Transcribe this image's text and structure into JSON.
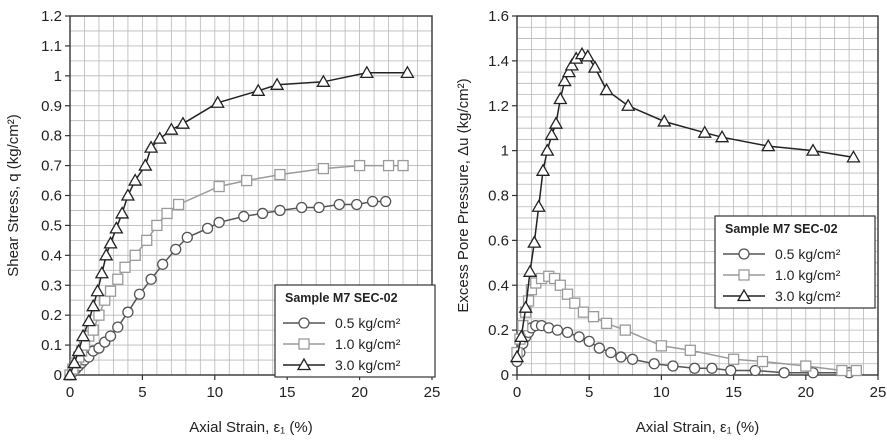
{
  "chart_data": [
    {
      "type": "line",
      "xlabel": "Axial Strain, ε₁ (%)",
      "ylabel": "Shear Stress, q (kg/cm²)",
      "xlim": [
        0,
        25
      ],
      "ylim": [
        0,
        1.2
      ],
      "xticks": [
        0,
        5,
        10,
        15,
        20,
        25
      ],
      "xtick_labels": [
        "0",
        "5",
        "10",
        "15",
        "20",
        "25"
      ],
      "yticks": [
        0,
        0.1,
        0.2,
        0.3,
        0.4,
        0.5,
        0.6,
        0.7,
        0.8,
        0.9,
        1,
        1.1,
        1.2
      ],
      "ytick_labels": [
        "0",
        "0.1",
        "0.2",
        "0.3",
        "0.4",
        "0.5",
        "0.6",
        "0.7",
        "0.8",
        "0.9",
        "1",
        "1.1",
        "1.2"
      ],
      "grid": true,
      "legend": {
        "title": "Sample M7 SEC-02",
        "placement": "bottom-right"
      },
      "series": [
        {
          "name": "0.5 kg/cm²",
          "marker": "circle",
          "color": "#555555",
          "points": [
            [
              0,
              0
            ],
            [
              0.2,
              0.01
            ],
            [
              0.4,
              0.02
            ],
            [
              0.6,
              0.03
            ],
            [
              0.8,
              0.04
            ],
            [
              1.0,
              0.05
            ],
            [
              1.3,
              0.06
            ],
            [
              1.6,
              0.08
            ],
            [
              2.0,
              0.09
            ],
            [
              2.4,
              0.11
            ],
            [
              2.8,
              0.13
            ],
            [
              3.3,
              0.16
            ],
            [
              4.0,
              0.21
            ],
            [
              4.8,
              0.27
            ],
            [
              5.6,
              0.32
            ],
            [
              6.4,
              0.37
            ],
            [
              7.3,
              0.42
            ],
            [
              8.1,
              0.46
            ],
            [
              9.5,
              0.49
            ],
            [
              10.3,
              0.51
            ],
            [
              12.0,
              0.53
            ],
            [
              13.3,
              0.54
            ],
            [
              14.5,
              0.55
            ],
            [
              16.0,
              0.56
            ],
            [
              17.2,
              0.56
            ],
            [
              18.6,
              0.57
            ],
            [
              19.8,
              0.57
            ],
            [
              20.9,
              0.58
            ],
            [
              21.8,
              0.58
            ]
          ]
        },
        {
          "name": "1.0 kg/cm²",
          "marker": "square",
          "color": "#9a9a9a",
          "points": [
            [
              0,
              0
            ],
            [
              0.2,
              0.02
            ],
            [
              0.4,
              0.04
            ],
            [
              0.6,
              0.06
            ],
            [
              0.8,
              0.08
            ],
            [
              1.0,
              0.1
            ],
            [
              1.3,
              0.13
            ],
            [
              1.6,
              0.15
            ],
            [
              2.0,
              0.2
            ],
            [
              2.4,
              0.25
            ],
            [
              2.8,
              0.28
            ],
            [
              3.3,
              0.32
            ],
            [
              3.8,
              0.36
            ],
            [
              4.5,
              0.4
            ],
            [
              5.3,
              0.45
            ],
            [
              6.0,
              0.5
            ],
            [
              6.7,
              0.54
            ],
            [
              7.5,
              0.57
            ],
            [
              10.3,
              0.63
            ],
            [
              12.2,
              0.65
            ],
            [
              14.5,
              0.67
            ],
            [
              17.5,
              0.69
            ],
            [
              20.0,
              0.7
            ],
            [
              22.0,
              0.7
            ],
            [
              23.0,
              0.7
            ]
          ]
        },
        {
          "name": "3.0 kg/cm²",
          "marker": "triangle",
          "color": "#222222",
          "points": [
            [
              0,
              0
            ],
            [
              0.3,
              0.04
            ],
            [
              0.6,
              0.08
            ],
            [
              0.9,
              0.13
            ],
            [
              1.3,
              0.18
            ],
            [
              1.6,
              0.23
            ],
            [
              1.9,
              0.28
            ],
            [
              2.2,
              0.34
            ],
            [
              2.5,
              0.4
            ],
            [
              2.8,
              0.44
            ],
            [
              3.2,
              0.49
            ],
            [
              3.6,
              0.54
            ],
            [
              4.0,
              0.6
            ],
            [
              4.5,
              0.65
            ],
            [
              5.2,
              0.7
            ],
            [
              5.6,
              0.76
            ],
            [
              6.2,
              0.79
            ],
            [
              7.0,
              0.82
            ],
            [
              7.8,
              0.84
            ],
            [
              10.2,
              0.91
            ],
            [
              13.0,
              0.95
            ],
            [
              14.3,
              0.97
            ],
            [
              17.5,
              0.98
            ],
            [
              20.5,
              1.01
            ],
            [
              23.3,
              1.01
            ]
          ]
        }
      ]
    },
    {
      "type": "line",
      "xlabel": "Axial Strain, ε₁ (%)",
      "ylabel": "Excess Pore Pressure, Δu (kg/cm²)",
      "xlim": [
        0,
        25
      ],
      "ylim": [
        0,
        1.6
      ],
      "xticks": [
        0,
        5,
        10,
        15,
        20,
        25
      ],
      "xtick_labels": [
        "0",
        "5",
        "10",
        "15",
        "20",
        "25"
      ],
      "yticks": [
        0,
        0.2,
        0.4,
        0.6,
        0.8,
        1,
        1.2,
        1.4,
        1.6
      ],
      "ytick_labels": [
        "0",
        "0.2",
        "0.4",
        "0.6",
        "0.8",
        "1",
        "1.2",
        "1.4",
        "1.6"
      ],
      "grid": true,
      "legend": {
        "title": "Sample M7 SEC-02",
        "placement": "center-right"
      },
      "series": [
        {
          "name": "0.5 kg/cm²",
          "marker": "circle",
          "color": "#555555",
          "points": [
            [
              0,
              0.06
            ],
            [
              0.2,
              0.1
            ],
            [
              0.4,
              0.14
            ],
            [
              0.6,
              0.17
            ],
            [
              0.8,
              0.19
            ],
            [
              1.0,
              0.21
            ],
            [
              1.3,
              0.22
            ],
            [
              1.7,
              0.22
            ],
            [
              2.2,
              0.21
            ],
            [
              2.8,
              0.2
            ],
            [
              3.5,
              0.19
            ],
            [
              4.3,
              0.17
            ],
            [
              5.0,
              0.15
            ],
            [
              5.7,
              0.12
            ],
            [
              6.5,
              0.1
            ],
            [
              7.2,
              0.08
            ],
            [
              8.0,
              0.07
            ],
            [
              9.5,
              0.05
            ],
            [
              10.8,
              0.04
            ],
            [
              12.3,
              0.03
            ],
            [
              13.5,
              0.03
            ],
            [
              14.8,
              0.02
            ],
            [
              16.5,
              0.02
            ],
            [
              18.5,
              0.01
            ],
            [
              20.5,
              0.01
            ],
            [
              23.0,
              0.01
            ]
          ]
        },
        {
          "name": "1.0 kg/cm²",
          "marker": "square",
          "color": "#9a9a9a",
          "points": [
            [
              0,
              0.1
            ],
            [
              0.2,
              0.16
            ],
            [
              0.4,
              0.22
            ],
            [
              0.6,
              0.28
            ],
            [
              0.8,
              0.33
            ],
            [
              1.0,
              0.38
            ],
            [
              1.3,
              0.41
            ],
            [
              1.7,
              0.43
            ],
            [
              2.2,
              0.44
            ],
            [
              2.6,
              0.43
            ],
            [
              3.0,
              0.4
            ],
            [
              3.5,
              0.36
            ],
            [
              4.0,
              0.32
            ],
            [
              4.6,
              0.28
            ],
            [
              5.3,
              0.26
            ],
            [
              6.2,
              0.23
            ],
            [
              7.5,
              0.2
            ],
            [
              10.0,
              0.13
            ],
            [
              12.0,
              0.11
            ],
            [
              15.0,
              0.07
            ],
            [
              17.0,
              0.06
            ],
            [
              20.0,
              0.04
            ],
            [
              22.5,
              0.02
            ],
            [
              23.5,
              0.02
            ]
          ]
        },
        {
          "name": "3.0 kg/cm²",
          "marker": "triangle",
          "color": "#222222",
          "points": [
            [
              0,
              0.08
            ],
            [
              0.3,
              0.17
            ],
            [
              0.6,
              0.3
            ],
            [
              0.9,
              0.46
            ],
            [
              1.2,
              0.59
            ],
            [
              1.5,
              0.75
            ],
            [
              1.8,
              0.91
            ],
            [
              2.1,
              1.0
            ],
            [
              2.4,
              1.07
            ],
            [
              2.7,
              1.12
            ],
            [
              3.0,
              1.23
            ],
            [
              3.3,
              1.31
            ],
            [
              3.6,
              1.35
            ],
            [
              3.8,
              1.38
            ],
            [
              4.1,
              1.41
            ],
            [
              4.5,
              1.43
            ],
            [
              4.9,
              1.42
            ],
            [
              5.4,
              1.37
            ],
            [
              6.2,
              1.27
            ],
            [
              7.7,
              1.2
            ],
            [
              10.2,
              1.13
            ],
            [
              13.0,
              1.08
            ],
            [
              14.2,
              1.06
            ],
            [
              17.4,
              1.02
            ],
            [
              20.5,
              1.0
            ],
            [
              23.3,
              0.97
            ]
          ]
        }
      ]
    }
  ]
}
